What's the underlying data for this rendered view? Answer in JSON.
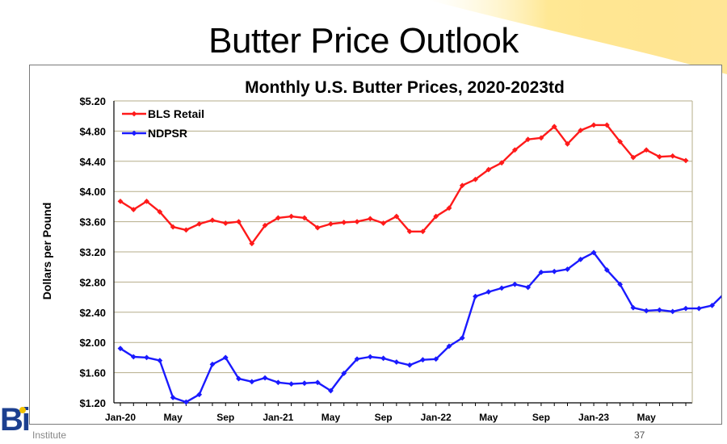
{
  "slide": {
    "title": "Butter Price Outlook",
    "logo_text": "Bi",
    "logo_subtext": "Institute",
    "page_number": "37"
  },
  "chart_data": {
    "type": "line",
    "title": "Monthly U.S. Butter Prices, 2020-2023td",
    "ylabel": "Dollars per Pound",
    "xlabel": "",
    "ylim": [
      1.2,
      5.2
    ],
    "y_ticks": [
      "$1.20",
      "$1.60",
      "$2.00",
      "$2.40",
      "$2.80",
      "$3.20",
      "$3.60",
      "$4.00",
      "$4.40",
      "$4.80",
      "$5.20"
    ],
    "x_tick_labels": [
      "Jan-20",
      "May",
      "Sep",
      "Jan-21",
      "May",
      "Sep",
      "Jan-22",
      "May",
      "Sep",
      "Jan-23",
      "May"
    ],
    "x_tick_month_index": [
      0,
      4,
      8,
      12,
      16,
      20,
      24,
      28,
      32,
      36,
      40
    ],
    "grid": "horizontal",
    "legend_position": "top-left",
    "series": [
      {
        "name": "BLS Retail",
        "color": "#ff1a1a",
        "values": [
          3.87,
          3.76,
          3.87,
          3.73,
          3.53,
          3.49,
          3.57,
          3.62,
          3.58,
          3.6,
          3.31,
          3.55,
          3.65,
          3.67,
          3.65,
          3.52,
          3.57,
          3.59,
          3.6,
          3.64,
          3.58,
          3.67,
          3.47,
          3.47,
          3.67,
          3.78,
          4.08,
          4.16,
          4.29,
          4.38,
          4.55,
          4.69,
          4.71,
          4.86,
          4.63,
          4.81,
          4.88,
          4.88,
          4.66,
          4.45,
          4.55,
          4.46,
          4.47,
          4.41
        ]
      },
      {
        "name": "NDPSR",
        "color": "#1a1aff",
        "values": [
          1.92,
          1.81,
          1.8,
          1.76,
          1.27,
          1.21,
          1.31,
          1.71,
          1.8,
          1.52,
          1.48,
          1.53,
          1.47,
          1.45,
          1.46,
          1.47,
          1.36,
          1.59,
          1.78,
          1.81,
          1.79,
          1.74,
          1.7,
          1.77,
          1.78,
          1.95,
          2.06,
          2.61,
          2.67,
          2.72,
          2.77,
          2.73,
          2.93,
          2.94,
          2.97,
          3.1,
          3.19,
          2.96,
          2.77,
          2.46,
          2.42,
          2.43,
          2.41,
          2.45,
          2.45,
          2.49,
          2.66
        ]
      }
    ]
  }
}
